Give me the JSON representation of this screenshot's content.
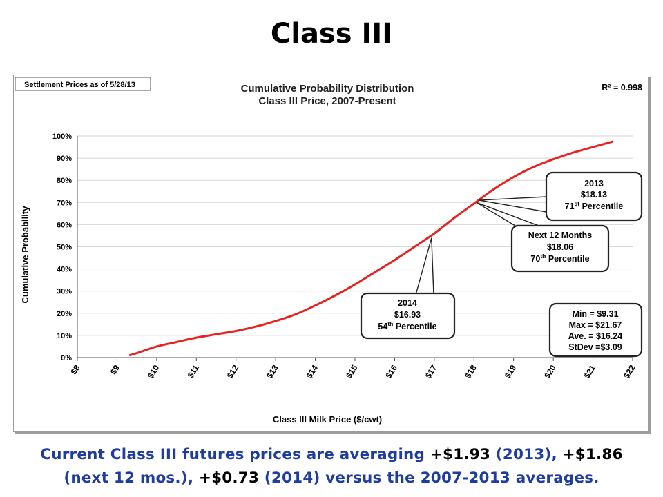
{
  "slide": {
    "title": "Class III",
    "footer": {
      "line1_a": "Current Class III futures prices are averaging ",
      "v2013": "+$1.93",
      "line1_b": " (2013), ",
      "vnext": "+$1.86",
      "line2_a": "(next 12 mos.), ",
      "v2014": "+$0.73",
      "line2_b": " (2014) versus the 2007-2013 averages."
    }
  },
  "chart_data": {
    "type": "line",
    "title": "Cumulative Probability Distribution",
    "subtitle": "Class III Price, 2007-Present",
    "settlement_note": "Settlement Prices as of 5/28/13",
    "r_squared": "R² = 0.998",
    "xlabel": "Class III Milk Price ($/cwt)",
    "ylabel": "Cumulative Probability",
    "xlim": [
      8,
      22
    ],
    "ylim": [
      0,
      1
    ],
    "x_ticks": [
      "$8",
      "$9",
      "$10",
      "$11",
      "$12",
      "$13",
      "$14",
      "$15",
      "$16",
      "$17",
      "$18",
      "$19",
      "$20",
      "$21",
      "$22"
    ],
    "y_ticks": [
      "0%",
      "10%",
      "20%",
      "30%",
      "40%",
      "50%",
      "60%",
      "70%",
      "80%",
      "90%",
      "100%"
    ],
    "grid": "horizontal",
    "color": "#e8231f",
    "series": [
      {
        "x": [
          9.31,
          9.5,
          10.0,
          10.5,
          11.0,
          11.5,
          12.0,
          12.5,
          13.0,
          13.5,
          14.0,
          14.5,
          15.0,
          15.5,
          16.0,
          16.5,
          17.0,
          17.5,
          18.0,
          18.5,
          19.0,
          19.5,
          20.0,
          20.5,
          21.0,
          21.5
        ],
        "y": [
          0.01,
          0.02,
          0.05,
          0.07,
          0.09,
          0.105,
          0.12,
          0.14,
          0.165,
          0.195,
          0.235,
          0.28,
          0.33,
          0.385,
          0.44,
          0.5,
          0.56,
          0.63,
          0.695,
          0.76,
          0.815,
          0.86,
          0.895,
          0.925,
          0.95,
          0.975
        ]
      }
    ],
    "annotations": [
      {
        "label": "2013",
        "line2": "$18.13",
        "pct": "71",
        "sup": "st",
        "suffix": " Percentile",
        "x": 18.13,
        "y": 0.71
      },
      {
        "label": "Next 12 Months",
        "line2": "$18.06",
        "pct": "70",
        "sup": "th",
        "suffix": " Percentile",
        "x": 18.06,
        "y": 0.7
      },
      {
        "label": "2014",
        "line2": "$16.93",
        "pct": "54",
        "sup": "th",
        "suffix": " Percentile",
        "x": 16.93,
        "y": 0.54
      }
    ],
    "stats": [
      "Min = $9.31",
      "Max = $21.67",
      "Ave. = $16.24",
      "StDev =$3.09"
    ]
  }
}
